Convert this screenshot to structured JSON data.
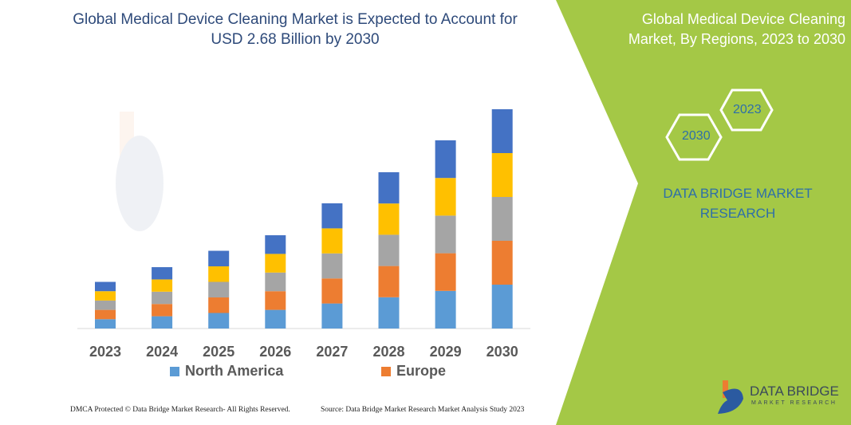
{
  "header": {
    "title": "Global Medical Device Cleaning Market is Expected to Account for USD 2.68 Billion by 2030"
  },
  "side": {
    "title": "Global Medical Device Cleaning Market, By Regions, 2023 to 2030",
    "hex_back": "2023",
    "hex_front": "2030",
    "brand": "DATA BRIDGE MARKET RESEARCH",
    "accent": "#a4c846"
  },
  "logo": {
    "line1": "DATA BRIDGE",
    "line2": "MARKET RESEARCH"
  },
  "footer": {
    "left": "DMCA Protected © Data Bridge Market Research-  All Rights Reserved.",
    "right": "Source: Data Bridge Market Research  Market Analysis Study 2023"
  },
  "chart_data": {
    "type": "bar",
    "stacked": true,
    "title": "Global Medical Device Cleaning Market is Expected to Account for USD 2.68 Billion by 2030",
    "categories": [
      "2023",
      "2024",
      "2025",
      "2026",
      "2027",
      "2028",
      "2029",
      "2030"
    ],
    "series": [
      {
        "name": "North America",
        "color": "#5b9bd5",
        "values": [
          0.114,
          0.15,
          0.19,
          0.228,
          0.306,
          0.382,
          0.46,
          0.536
        ]
      },
      {
        "name": "Europe",
        "color": "#ed7d31",
        "values": [
          0.114,
          0.15,
          0.19,
          0.228,
          0.306,
          0.382,
          0.46,
          0.536
        ]
      },
      {
        "color": "#a5a5a5",
        "values": [
          0.114,
          0.15,
          0.19,
          0.228,
          0.306,
          0.382,
          0.46,
          0.536
        ]
      },
      {
        "color": "#ffc000",
        "values": [
          0.114,
          0.15,
          0.19,
          0.228,
          0.306,
          0.382,
          0.46,
          0.536
        ]
      },
      {
        "color": "#4472c4",
        "values": [
          0.114,
          0.15,
          0.19,
          0.228,
          0.306,
          0.382,
          0.46,
          0.536
        ]
      }
    ],
    "ylim": [
      0,
      2.68
    ],
    "grid": false,
    "legend": "bottom"
  }
}
